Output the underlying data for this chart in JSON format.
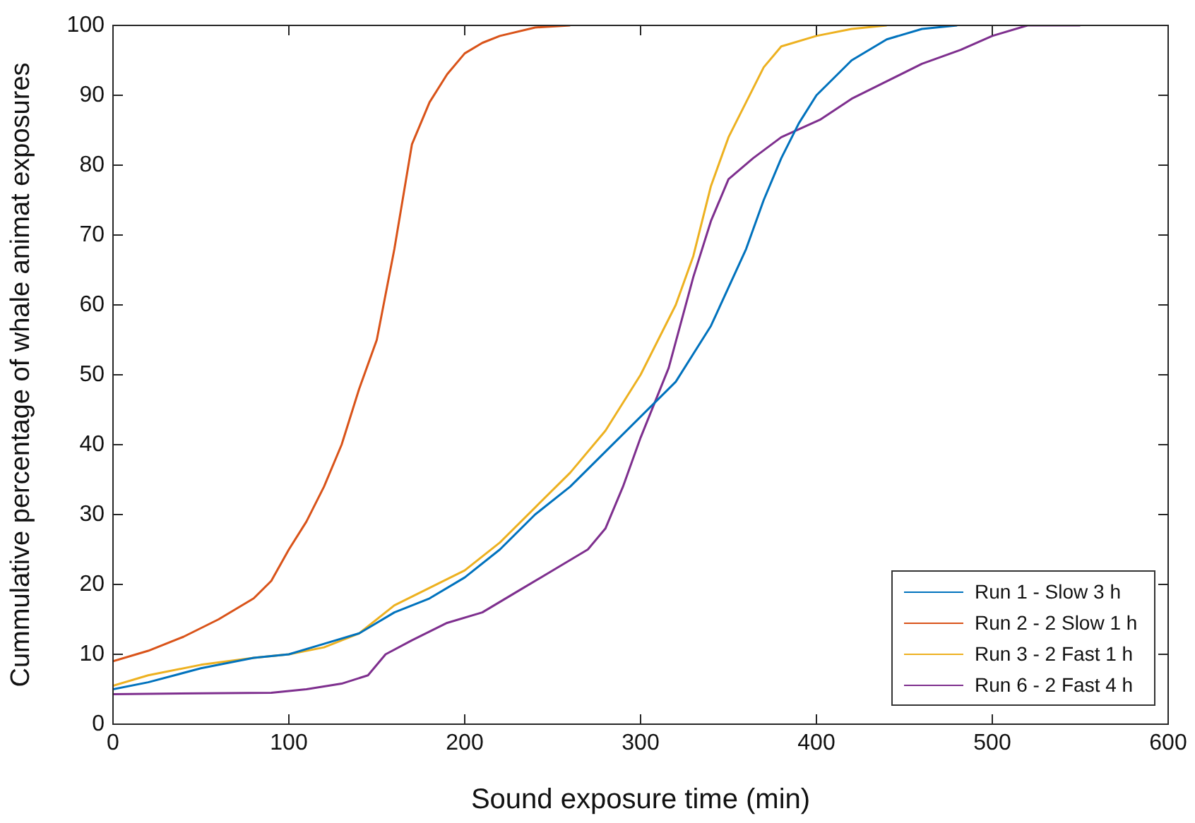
{
  "chart_data": {
    "type": "line",
    "xlabel": "Sound exposure time (min)",
    "ylabel": "Cummulative percentage of whale animat exposures",
    "xlim": [
      0,
      600
    ],
    "xticks": [
      0,
      100,
      200,
      300,
      400,
      500,
      600
    ],
    "ylim": [
      0,
      100
    ],
    "yticks": [
      0,
      10,
      20,
      30,
      40,
      50,
      60,
      70,
      80,
      90,
      100
    ],
    "grid": false,
    "legend": "bottom right",
    "marker": "none",
    "line_style": "solid",
    "series": [
      {
        "name": "Run 1 - Slow 3 h",
        "color": "#0072bd",
        "x": [
          0,
          20,
          50,
          80,
          100,
          120,
          140,
          160,
          180,
          200,
          220,
          240,
          260,
          280,
          300,
          320,
          340,
          360,
          370,
          380,
          390,
          400,
          420,
          440,
          460,
          480
        ],
        "values": [
          5,
          6,
          8,
          9.5,
          10,
          11.5,
          13,
          16,
          18,
          21,
          25,
          30,
          34,
          39,
          44,
          49,
          57,
          68,
          75,
          81,
          86,
          90,
          95,
          98,
          99.5,
          100
        ]
      },
      {
        "name": "Run 2 - 2 Slow 1 h",
        "color": "#d95319",
        "x": [
          0,
          20,
          40,
          60,
          80,
          90,
          100,
          110,
          120,
          130,
          140,
          150,
          160,
          170,
          180,
          190,
          200,
          210,
          220,
          240,
          260
        ],
        "values": [
          9,
          10.5,
          12.5,
          15,
          18,
          20.5,
          25,
          29,
          34,
          40,
          48,
          55,
          68,
          83,
          89,
          93,
          96,
          97.5,
          98.5,
          99.7,
          100
        ]
      },
      {
        "name": "Run 3 - 2 Fast 1 h",
        "color": "#edb120",
        "x": [
          0,
          20,
          50,
          80,
          100,
          120,
          140,
          160,
          180,
          200,
          220,
          240,
          260,
          280,
          300,
          320,
          330,
          340,
          350,
          360,
          370,
          380,
          400,
          420,
          440
        ],
        "values": [
          5.5,
          7,
          8.5,
          9.5,
          10,
          11,
          13,
          17,
          19.5,
          22,
          26,
          31,
          36,
          42,
          50,
          60,
          67,
          77,
          84,
          89,
          94,
          97,
          98.5,
          99.5,
          100
        ]
      },
      {
        "name": "Run 6 - 2 Fast 4 h",
        "color": "#7e2f8e",
        "x": [
          0,
          90,
          110,
          130,
          145,
          155,
          170,
          190,
          210,
          230,
          250,
          270,
          280,
          290,
          300,
          316,
          330,
          340,
          350,
          364,
          380,
          402,
          420,
          440,
          460,
          482,
          500,
          520,
          550
        ],
        "values": [
          4.3,
          4.5,
          5,
          5.8,
          7,
          10,
          12,
          14.5,
          16,
          19,
          22,
          25,
          28,
          34,
          41,
          51,
          64,
          72,
          78,
          81,
          84,
          86.5,
          89.5,
          92,
          94.5,
          96.5,
          98.5,
          100,
          100
        ]
      }
    ]
  }
}
